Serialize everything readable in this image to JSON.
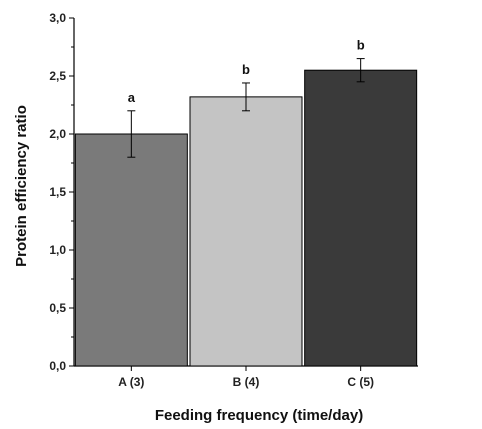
{
  "chart_data": {
    "type": "bar",
    "xlabel": "Feeding frequency (time/day)",
    "ylabel": "Protein efficiency ratio",
    "ylim": [
      0,
      3.0
    ],
    "yticks": [
      "0,0",
      "0,5",
      "1,0",
      "1,5",
      "2,0",
      "2,5",
      "3,0"
    ],
    "categories": [
      "A (3)",
      "B (4)",
      "C (5)"
    ],
    "values": [
      2.0,
      2.32,
      2.55
    ],
    "errors": [
      0.2,
      0.12,
      0.1
    ],
    "significance": [
      "a",
      "b",
      "b"
    ],
    "colors": [
      "#7a7a7a",
      "#c4c4c4",
      "#3a3a3a"
    ],
    "grid": false,
    "legend": "none"
  }
}
